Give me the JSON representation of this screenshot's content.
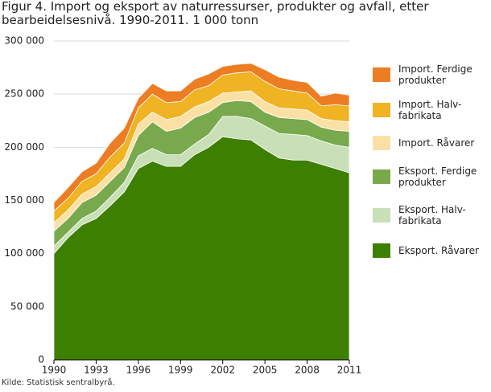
{
  "chart_data": {
    "type": "stacked_area",
    "title": "Figur 4. Import og eksport av naturressurser, produkter og avfall, etter bearbeidelsesnivå. 1990-2011. 1 000 tonn",
    "source": "Kilde: Statistisk sentralbyrå.",
    "x": [
      1990,
      1991,
      1992,
      1993,
      1994,
      1995,
      1996,
      1997,
      1998,
      1999,
      2000,
      2001,
      2002,
      2003,
      2004,
      2005,
      2006,
      2007,
      2008,
      2009,
      2010,
      2011
    ],
    "xlim": [
      1990,
      2011
    ],
    "xticks": [
      1990,
      1993,
      1996,
      1999,
      2002,
      2005,
      2008,
      2011
    ],
    "ylim": [
      0,
      300000
    ],
    "yticks": [
      {
        "value": 0,
        "label": "0"
      },
      {
        "value": 50000,
        "label": "50 000"
      },
      {
        "value": 100000,
        "label": "100 000"
      },
      {
        "value": 150000,
        "label": "150 000"
      },
      {
        "value": 200000,
        "label": "200 000"
      },
      {
        "value": 250000,
        "label": "250 000"
      },
      {
        "value": 300000,
        "label": "300 000"
      }
    ],
    "grid": true,
    "legend": "right",
    "series": [
      {
        "name": "Eksport. Råvarer",
        "color": "#3d7f00",
        "values": [
          100000,
          115000,
          127000,
          133000,
          145000,
          158000,
          180000,
          187000,
          182000,
          182000,
          193000,
          200000,
          210000,
          208000,
          207000,
          198000,
          190000,
          188000,
          188000,
          184000,
          180000,
          176000
        ]
      },
      {
        "name": "Eksport. Halv-\nfabrikata",
        "color": "#c9dfb7",
        "values": [
          7000,
          5000,
          6000,
          7000,
          8000,
          9000,
          12000,
          12000,
          11000,
          11000,
          10000,
          12000,
          19000,
          21000,
          20000,
          22000,
          23000,
          24000,
          23000,
          22000,
          22000,
          24000
        ]
      },
      {
        "name": "Eksport. Ferdige\nprodukter",
        "color": "#78a94c",
        "values": [
          14000,
          13000,
          15000,
          15000,
          15000,
          14000,
          19000,
          25000,
          22000,
          25000,
          25000,
          21000,
          13000,
          15000,
          16000,
          13000,
          15000,
          15000,
          15000,
          13000,
          14000,
          15000
        ]
      },
      {
        "name": "Import. Råvarer",
        "color": "#fbe0a6",
        "values": [
          8000,
          8000,
          8000,
          8000,
          8000,
          8000,
          11000,
          9000,
          11000,
          11000,
          10000,
          10000,
          9000,
          8000,
          10000,
          10000,
          9000,
          9000,
          9000,
          8000,
          9000,
          9000
        ]
      },
      {
        "name": "Import. Halv-\nfabrikata",
        "color": "#efb323",
        "values": [
          11000,
          11000,
          12000,
          12000,
          15000,
          15000,
          15000,
          17000,
          16000,
          14000,
          16000,
          15000,
          17000,
          18000,
          18000,
          19000,
          18000,
          17000,
          16000,
          12000,
          15000,
          15000
        ]
      },
      {
        "name": "Import. Ferdige\nprodukter",
        "color": "#ed7d22",
        "values": [
          8000,
          10000,
          9000,
          10000,
          13000,
          14000,
          9000,
          10000,
          11000,
          10000,
          10000,
          11000,
          8000,
          8000,
          8000,
          11000,
          11000,
          10000,
          10000,
          9000,
          11000,
          10000
        ]
      }
    ]
  }
}
